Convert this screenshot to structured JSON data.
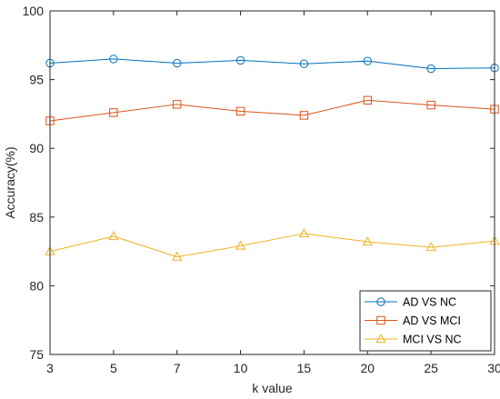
{
  "chart_data": {
    "type": "line",
    "categories": [
      "3",
      "5",
      "7",
      "10",
      "15",
      "20",
      "25",
      "30"
    ],
    "xlabel": "k value",
    "ylabel": "Accuracy(%)",
    "ylim": [
      75,
      100
    ],
    "yticks": [
      75,
      80,
      85,
      90,
      95,
      100
    ],
    "grid": false,
    "legend_position": "bottom-right",
    "series": [
      {
        "name": "AD VS NC",
        "color": "#0072BD",
        "marker": "circle",
        "values": [
          96.2,
          96.5,
          96.2,
          96.4,
          96.15,
          96.35,
          95.8,
          95.85
        ]
      },
      {
        "name": "AD VS MCI",
        "color": "#D95319",
        "marker": "square",
        "values": [
          92.0,
          92.6,
          93.2,
          92.7,
          92.4,
          93.5,
          93.15,
          92.85
        ]
      },
      {
        "name": "MCI VS NC",
        "color": "#EDB120",
        "marker": "triangle",
        "values": [
          82.5,
          83.6,
          82.1,
          82.9,
          83.8,
          83.2,
          82.8,
          83.25
        ]
      }
    ]
  }
}
